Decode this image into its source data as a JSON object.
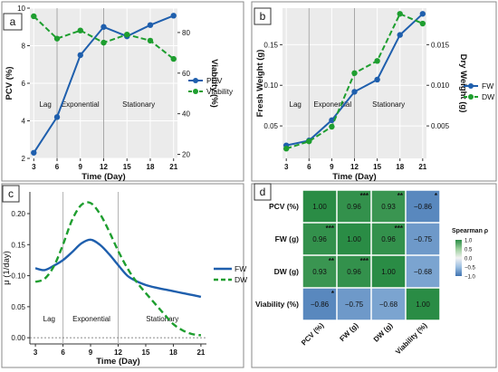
{
  "chart_data": [
    {
      "panel": "a",
      "type": "line",
      "x": [
        3,
        6,
        9,
        12,
        15,
        18,
        21
      ],
      "xlabel": "Time (Day)",
      "xlim": [
        2.5,
        21.5
      ],
      "xticks": [
        "3",
        "6",
        "9",
        "12",
        "15",
        "18",
        "21"
      ],
      "ylabel_left": "PCV (%)",
      "ylim_left": [
        2,
        10
      ],
      "yticks_left": [
        "2",
        "4",
        "6",
        "8",
        "10"
      ],
      "ylabel_right": "Viability (%)",
      "ylim_right": [
        18,
        92
      ],
      "yticks_right": [
        "20",
        "40",
        "60",
        "80"
      ],
      "phase_dividers": [
        6,
        12
      ],
      "phases": [
        {
          "label": "Lag",
          "x": 4.5
        },
        {
          "label": "Exponential",
          "x": 9
        },
        {
          "label": "Stationary",
          "x": 16.5
        }
      ],
      "series": [
        {
          "name": "PCV",
          "axis": "left",
          "color": "#1f5fad",
          "dash": false,
          "values": [
            2.3,
            4.2,
            7.5,
            9.0,
            8.5,
            9.1,
            9.6
          ]
        },
        {
          "name": "Viability",
          "axis": "right",
          "color": "#1e9e2f",
          "dash": true,
          "values": [
            88,
            77,
            81,
            75,
            79,
            76,
            67
          ]
        }
      ],
      "legend": "center-right"
    },
    {
      "panel": "b",
      "type": "line",
      "x": [
        3,
        6,
        9,
        12,
        15,
        18,
        21
      ],
      "xlabel": "Time (Day)",
      "xlim": [
        2.5,
        21.5
      ],
      "xticks": [
        "3",
        "6",
        "9",
        "12",
        "15",
        "18",
        "21"
      ],
      "ylabel_left": "Fresh Weight (g)",
      "ylim_left": [
        0.01,
        0.195
      ],
      "yticks_left": [
        "0.05",
        "0.10",
        "0.15"
      ],
      "ylabel_right": "Dry Weight (g)",
      "ylim_right": [
        0.001,
        0.0195
      ],
      "yticks_right": [
        "0.005",
        "0.010",
        "0.015"
      ],
      "phase_dividers": [
        6,
        12
      ],
      "phases": [
        {
          "label": "Lag",
          "x": 4.2
        },
        {
          "label": "Exponential",
          "x": 9.1
        },
        {
          "label": "Stationary",
          "x": 16.5
        }
      ],
      "series": [
        {
          "name": "FW",
          "axis": "left",
          "color": "#1f5fad",
          "dash": false,
          "values": [
            0.026,
            0.032,
            0.057,
            0.092,
            0.107,
            0.162,
            0.188
          ]
        },
        {
          "name": "DW",
          "axis": "right",
          "color": "#1e9e2f",
          "dash": true,
          "values": [
            0.0022,
            0.0031,
            0.0049,
            0.0115,
            0.013,
            0.0188,
            0.0176
          ]
        }
      ],
      "legend": "center-right"
    },
    {
      "panel": "c",
      "type": "line",
      "xlabel": "Time (Day)",
      "xlim": [
        2.4,
        21.6
      ],
      "xticks": [
        "3",
        "6",
        "9",
        "12",
        "15",
        "18",
        "21"
      ],
      "ylabel": "μ (1/day)",
      "ylim": [
        -0.01,
        0.235
      ],
      "yticks": [
        "0.00",
        "0.05",
        "0.10",
        "0.15",
        "0.20"
      ],
      "zero_line": true,
      "phase_dividers": [
        6,
        12
      ],
      "phases": [
        {
          "label": "Lag",
          "x": 4.5
        },
        {
          "label": "Exponential",
          "x": 9.1
        },
        {
          "label": "Stationary",
          "x": 16.8
        }
      ],
      "series": [
        {
          "name": "FW",
          "color": "#1f5fad",
          "dash": false,
          "x": [
            3,
            4,
            5,
            6,
            7,
            8,
            9,
            10,
            11,
            12,
            13,
            14,
            15,
            16,
            17,
            18,
            19,
            20,
            21
          ],
          "values": [
            0.112,
            0.109,
            0.116,
            0.125,
            0.138,
            0.152,
            0.158,
            0.15,
            0.135,
            0.117,
            0.1,
            0.091,
            0.085,
            0.081,
            0.078,
            0.075,
            0.072,
            0.069,
            0.066
          ]
        },
        {
          "name": "DW",
          "color": "#1e9e2f",
          "dash": true,
          "x": [
            3,
            4,
            5,
            6,
            7,
            8,
            9,
            10,
            11,
            12,
            13,
            14,
            15,
            16,
            17,
            18,
            19,
            20,
            21
          ],
          "values": [
            0.09,
            0.095,
            0.115,
            0.15,
            0.19,
            0.214,
            0.217,
            0.2,
            0.172,
            0.14,
            0.112,
            0.09,
            0.072,
            0.055,
            0.038,
            0.022,
            0.012,
            0.006,
            0.004
          ]
        }
      ],
      "legend": "right"
    },
    {
      "panel": "d",
      "type": "heatmap",
      "rows": [
        "PCV (%)",
        "FW (g)",
        "DW (g)",
        "Viability (%)"
      ],
      "cols": [
        "PCV (%)",
        "FW (g)",
        "DW (g)",
        "Viability (%)"
      ],
      "values": [
        [
          1.0,
          0.96,
          0.93,
          -0.86
        ],
        [
          0.96,
          1.0,
          0.96,
          -0.75
        ],
        [
          0.93,
          0.96,
          1.0,
          -0.68
        ],
        [
          -0.86,
          -0.75,
          -0.68,
          1.0
        ]
      ],
      "labels": [
        [
          "1.00",
          "0.96",
          "0.93",
          "−0.86"
        ],
        [
          "0.96",
          "1.00",
          "0.96",
          "−0.75"
        ],
        [
          "0.93",
          "0.96",
          "1.00",
          "−0.68"
        ],
        [
          "−0.86",
          "−0.75",
          "−0.68",
          "1.00"
        ]
      ],
      "stars": [
        [
          "",
          "***",
          "**",
          "*"
        ],
        [
          "***",
          "",
          "***",
          ""
        ],
        [
          "**",
          "***",
          "",
          ""
        ],
        [
          "*",
          "",
          "",
          ""
        ]
      ],
      "legend_title": "Spearman ρ",
      "legend_ticks": [
        "1.0",
        "0.5",
        "0.0",
        "−0.5",
        "−1.0"
      ],
      "colors": {
        "pos_high": "#2a8c45",
        "pos_low": "#9bcf9c",
        "mid": "#f2f2f2",
        "neg_low": "#9cc0e2",
        "neg_high": "#3f72b0"
      }
    }
  ]
}
